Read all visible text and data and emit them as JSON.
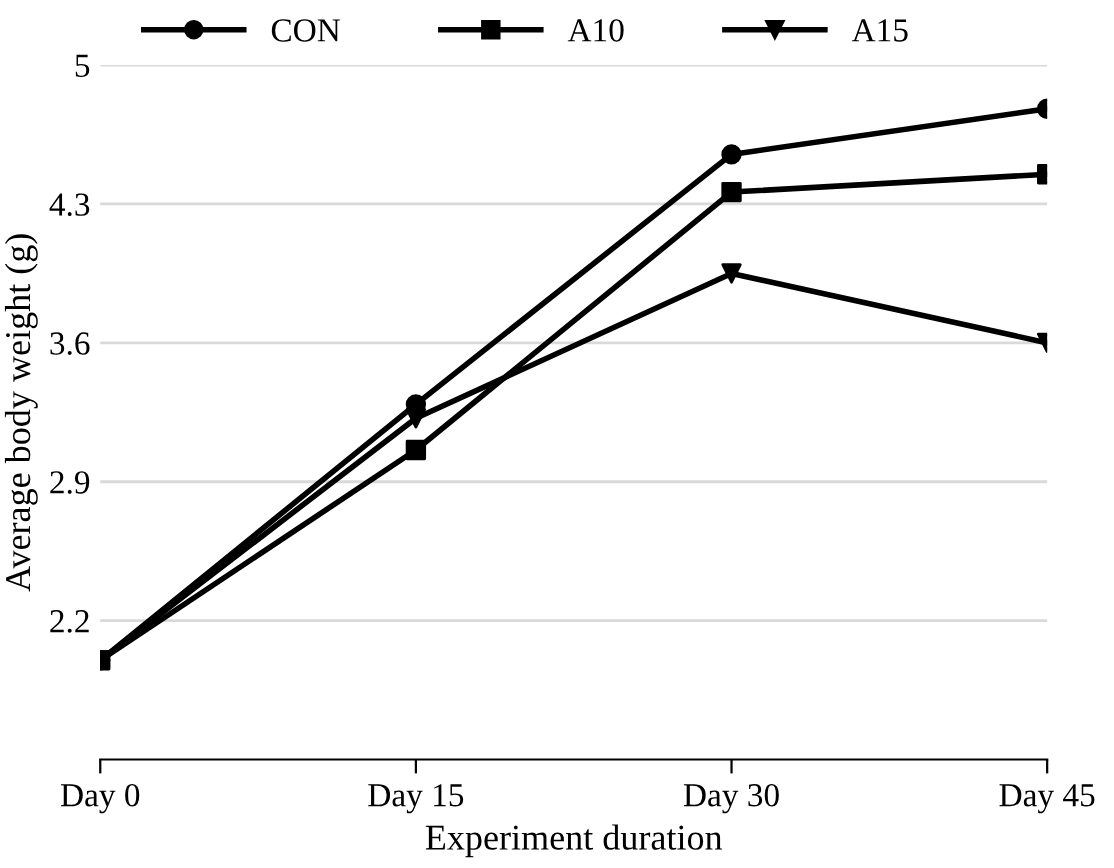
{
  "chart_data": {
    "type": "line",
    "xlabel": "Experiment duration",
    "ylabel": "Average body weight (g)",
    "categories": [
      "Day 0",
      "Day 15",
      "Day 30",
      "Day 45"
    ],
    "series": [
      {
        "name": "CON",
        "color": "#000000",
        "marker": "circle",
        "values": [
          2.0,
          3.29,
          4.55,
          4.78
        ]
      },
      {
        "name": "A10",
        "color": "#000000",
        "marker": "square",
        "values": [
          2.0,
          3.06,
          4.36,
          4.45
        ]
      },
      {
        "name": "A15",
        "color": "#000000",
        "marker": "triangle",
        "values": [
          2.0,
          3.22,
          3.95,
          3.6
        ]
      }
    ],
    "ylim": [
      1.5,
      5
    ],
    "yticks": [
      2.2,
      2.9,
      3.6,
      4.3,
      5
    ],
    "grid": "y",
    "legend": "top",
    "line_style": "solid"
  }
}
